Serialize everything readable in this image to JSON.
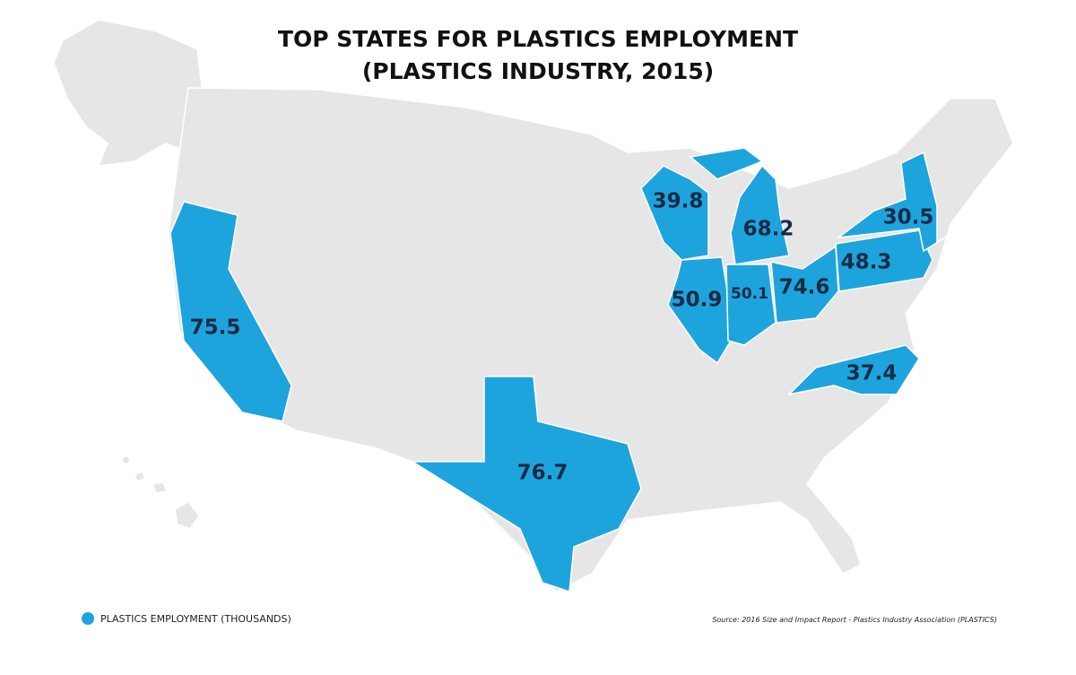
{
  "title": {
    "line1": "TOP STATES FOR PLASTICS EMPLOYMENT",
    "line2": "(PLASTICS INDUSTRY, 2015)"
  },
  "regions": [
    {
      "value": 75.5
    },
    {
      "value": 76.7
    },
    {
      "value": 39.8
    },
    {
      "value": 68.2
    },
    {
      "value": 50.9
    },
    {
      "value": 50.1
    },
    {
      "value": 74.6
    },
    {
      "value": 48.3
    },
    {
      "value": 30.5
    },
    {
      "value": 37.4
    }
  ],
  "legend": {
    "label": "PLASTICS EMPLOYMENT (THOUSANDS)"
  },
  "source": "Source: 2016 Size and Impact Report - Plastics Industry Association (PLASTICS)"
}
